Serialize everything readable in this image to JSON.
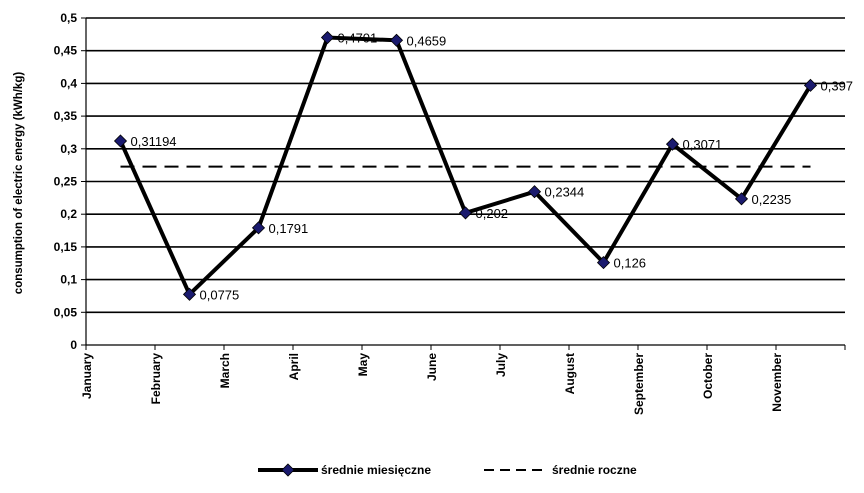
{
  "chart_data": {
    "type": "line",
    "title": "",
    "ylabel": "consumption of electric energy (kWh/kg)",
    "xlabel": "",
    "categories": [
      "January",
      "February",
      "March",
      "April",
      "May",
      "June",
      "July",
      "August",
      "September",
      "October",
      "November"
    ],
    "ylim": [
      0,
      0.5
    ],
    "yticks": [
      0,
      0.05,
      0.1,
      0.15,
      0.2,
      0.25,
      0.3,
      0.35,
      0.4,
      0.45,
      0.5
    ],
    "ytick_labels": [
      "0",
      "0,05",
      "0,1",
      "0,15",
      "0,2",
      "0,25",
      "0,3",
      "0,35",
      "0,4",
      "0,45",
      "0,5"
    ],
    "grid": true,
    "legend_position": "bottom-center",
    "series": [
      {
        "name": "średnie miesięczne",
        "style": "solid-with-diamond-markers",
        "color": "#000000",
        "marker_color": "#1a1a6e",
        "values": [
          0.31194,
          0.0775,
          0.1791,
          0.4701,
          0.4659,
          0.202,
          0.2344,
          0.126,
          0.3071,
          0.2235,
          0.397
        ],
        "labels": [
          "0,31194",
          "0,0775",
          "0,1791",
          "0,4701",
          "0,4659",
          "0,202",
          "0,2344",
          "0,126",
          "0,3071",
          "0,2235",
          "0,397"
        ]
      },
      {
        "name": "średnie roczne",
        "style": "dashed",
        "color": "#000000",
        "values": [
          0.2727,
          0.2727,
          0.2727,
          0.2727,
          0.2727,
          0.2727,
          0.2727,
          0.2727,
          0.2727,
          0.2727,
          0.2727
        ]
      }
    ]
  }
}
